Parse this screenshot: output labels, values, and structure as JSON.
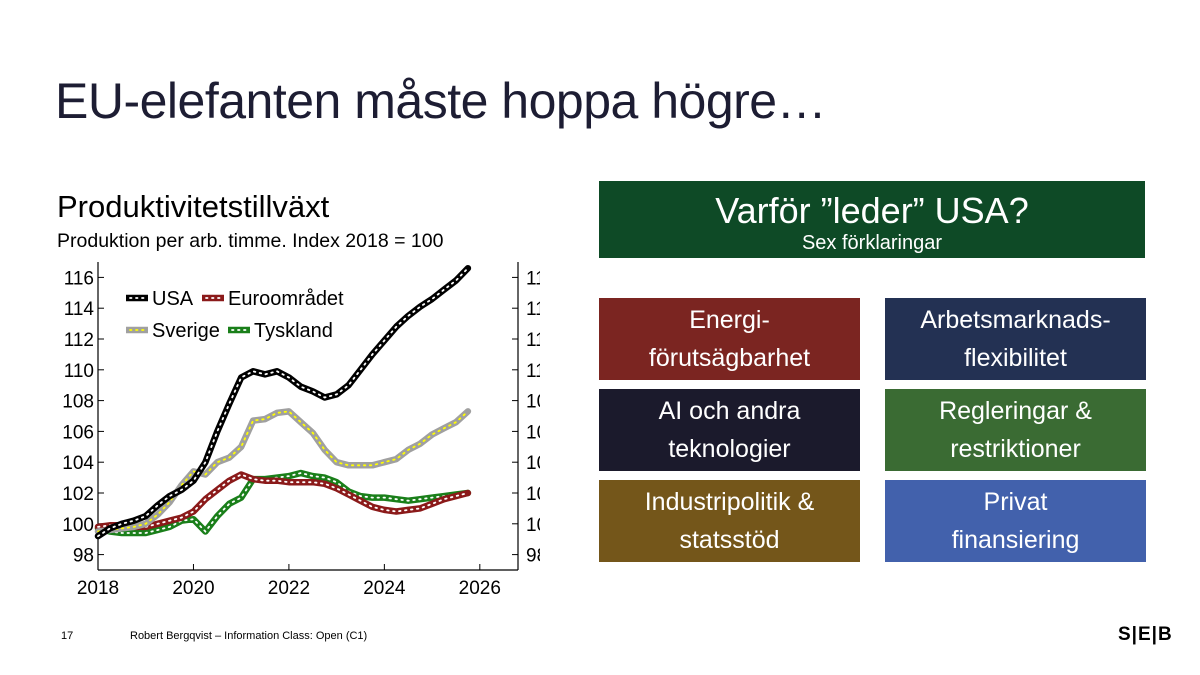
{
  "slide": {
    "title": "EU-elefanten måste hoppa högre…",
    "page_number": "17",
    "footer": "Robert Bergqvist – Information Class: Open (C1)",
    "logo": "S|E|B"
  },
  "right_panel": {
    "header": {
      "title": "Varför ”leder” USA?",
      "subtitle": "Sex förklaringar",
      "color": "#0e4a26"
    },
    "boxes": [
      {
        "label": "Energi-\nförutsägbarhet",
        "color": "#7b2521"
      },
      {
        "label": "Arbetsmarknads-\nflexibilitet",
        "color": "#233153"
      },
      {
        "label": "AI och andra\nteknologier",
        "color": "#1b1a2c"
      },
      {
        "label": "Regleringar &\nrestriktioner",
        "color": "#3a6b33"
      },
      {
        "label": "Industripolitik &\nstatsstöd",
        "color": "#74561a"
      },
      {
        "label": "Privat\nfinansiering",
        "color": "#4261ac"
      }
    ]
  },
  "chart_data": {
    "type": "line",
    "title": "Produktivitetstillväxt",
    "subtitle": "Produktion per arb. timme. Index 2018 = 100",
    "xlim": [
      2018,
      2026.8
    ],
    "ylim": [
      97,
      117
    ],
    "x_ticks": [
      2018,
      2020,
      2022,
      2024,
      2026
    ],
    "y_ticks": [
      98,
      100,
      102,
      104,
      106,
      108,
      110,
      112,
      114,
      116
    ],
    "dual_y_axis": true,
    "grid": false,
    "legend_placement": "top-left",
    "x": [
      2018.0,
      2018.25,
      2018.5,
      2018.75,
      2019.0,
      2019.25,
      2019.5,
      2019.75,
      2020.0,
      2020.25,
      2020.5,
      2020.75,
      2021.0,
      2021.25,
      2021.5,
      2021.75,
      2022.0,
      2022.25,
      2022.5,
      2022.75,
      2023.0,
      2023.25,
      2023.5,
      2023.75,
      2024.0,
      2024.25,
      2024.5,
      2024.75,
      2025.0,
      2025.25,
      2025.5,
      2025.75
    ],
    "series": [
      {
        "name": "USA",
        "color": "#000000",
        "dot_color": "#ffffff",
        "values": [
          99.2,
          99.7,
          100.0,
          100.2,
          100.5,
          101.2,
          101.8,
          102.2,
          102.8,
          104.0,
          106.0,
          107.8,
          109.5,
          109.9,
          109.7,
          109.9,
          109.5,
          108.9,
          108.6,
          108.2,
          108.4,
          109.0,
          110.0,
          111.0,
          111.9,
          112.8,
          113.5,
          114.1,
          114.6,
          115.2,
          115.8,
          116.6
        ]
      },
      {
        "name": "Euroområdet",
        "color": "#8b1a1a",
        "dot_color": "#ffffff",
        "values": [
          99.8,
          99.9,
          99.9,
          99.8,
          99.8,
          100.0,
          100.2,
          100.4,
          100.8,
          101.6,
          102.2,
          102.8,
          103.2,
          102.9,
          102.8,
          102.8,
          102.7,
          102.7,
          102.7,
          102.6,
          102.3,
          101.9,
          101.5,
          101.1,
          100.9,
          100.8,
          100.9,
          101.0,
          101.3,
          101.6,
          101.8,
          102.0
        ]
      },
      {
        "name": "Sverige",
        "color": "#a0a0a0",
        "dot_color": "#ffff00",
        "values": [
          99.5,
          99.6,
          99.7,
          99.8,
          100.0,
          100.6,
          101.4,
          102.5,
          103.4,
          103.2,
          104.0,
          104.3,
          105.0,
          106.7,
          106.8,
          107.2,
          107.3,
          106.6,
          105.9,
          104.8,
          104.0,
          103.8,
          103.8,
          103.8,
          104.0,
          104.2,
          104.8,
          105.2,
          105.8,
          106.2,
          106.6,
          107.3
        ]
      },
      {
        "name": "Tyskland",
        "color": "#1a7f1a",
        "dot_color": "#ffffff",
        "values": [
          99.7,
          99.5,
          99.4,
          99.4,
          99.4,
          99.6,
          99.8,
          100.2,
          100.3,
          99.5,
          100.5,
          101.3,
          101.7,
          102.9,
          102.9,
          103.0,
          103.1,
          103.3,
          103.1,
          103.0,
          102.7,
          102.1,
          101.8,
          101.7,
          101.7,
          101.6,
          101.5,
          101.6,
          101.7,
          101.8,
          101.9,
          102.0
        ]
      }
    ]
  }
}
